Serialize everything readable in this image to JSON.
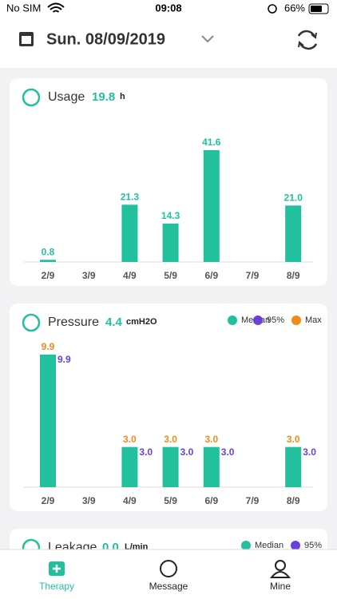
{
  "status_bar": {
    "carrier": "No SIM",
    "time": "09:08",
    "battery": "66%"
  },
  "header": {
    "date": "Sun. 08/09/2019"
  },
  "cards": [
    {
      "title": "Usage",
      "value": "19.8",
      "unit": "h",
      "chart": {
        "type": "bar",
        "categories": [
          "2/9",
          "3/9",
          "4/9",
          "5/9",
          "6/9",
          "7/9",
          "8/9"
        ],
        "values": [
          0.8,
          null,
          21.3,
          14.3,
          41.6,
          null,
          21.0
        ],
        "value_labels": [
          "0.8",
          null,
          "21.3",
          "14.3",
          "41.6",
          null,
          "21.0"
        ],
        "color": "#22c09c"
      }
    },
    {
      "title": "Pressure",
      "value": "4.4",
      "unit": "cmH2O",
      "chart": {
        "type": "bar",
        "categories": [
          "2/9",
          "3/9",
          "4/9",
          "5/9",
          "6/9",
          "7/9",
          "8/9"
        ],
        "series": [
          {
            "name": "Median",
            "color": "#22c09c",
            "values": [
              9.9,
              null,
              3.0,
              3.0,
              3.0,
              null,
              3.0
            ]
          },
          {
            "name": "95%",
            "color": "#6b3fd9",
            "values": [
              9.9,
              null,
              3.0,
              3.0,
              3.0,
              null,
              3.0
            ],
            "value_labels": [
              "9.9",
              null,
              "3.0",
              "3.0",
              "3.0",
              null,
              "3.0"
            ]
          },
          {
            "name": "Max",
            "color": "#f28a1a",
            "values": [
              9.9,
              null,
              3.0,
              3.0,
              3.0,
              null,
              3.0
            ],
            "value_labels": [
              "9.9",
              null,
              "3.0",
              "3.0",
              "3.0",
              null,
              "3.0"
            ]
          }
        ]
      }
    },
    {
      "title": "Leakage",
      "value": "0.0",
      "unit": "L/min",
      "chart": {
        "type": "bar",
        "series": [
          {
            "name": "Median",
            "color": "#22c09c"
          },
          {
            "name": "95%",
            "color": "#6b3fd9"
          }
        ]
      }
    }
  ],
  "tabs": [
    {
      "label": "Therapy",
      "active": true
    },
    {
      "label": "Message",
      "active": false
    },
    {
      "label": "Mine",
      "active": false
    }
  ]
}
